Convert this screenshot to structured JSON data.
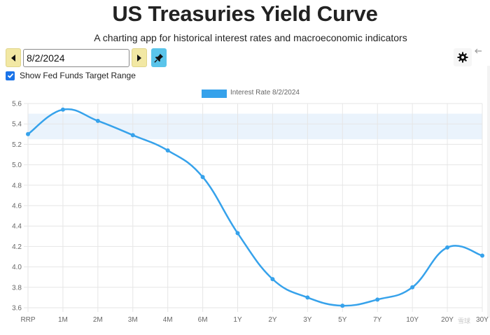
{
  "header": {
    "title": "US Treasuries Yield Curve",
    "subtitle": "A charting app for historical interest rates and macroeconomic indicators"
  },
  "controls": {
    "date_value": "8/2/2024",
    "fed_funds_checkbox_label": "Show Fed Funds Target Range",
    "fed_funds_checked": true
  },
  "icons": {
    "prev": "triangle-left-icon",
    "next": "triangle-right-icon",
    "pin": "pushpin-icon",
    "settings": "gear-icon",
    "collapse": "arrow-left-icon"
  },
  "colors": {
    "line": "#36a2eb",
    "nav_button": "#f2e8a4",
    "pin_button": "#5ac4ea",
    "checkbox": "#1a73e8",
    "fed_band": "#eaf3fc"
  },
  "watermark": "雪球",
  "chart_data": {
    "type": "line",
    "title": "",
    "legend": [
      "Interest Rate 8/2/2024"
    ],
    "legend_position": "top",
    "grid": true,
    "categories": [
      "RRP",
      "1M",
      "2M",
      "3M",
      "4M",
      "6M",
      "1Y",
      "2Y",
      "3Y",
      "5Y",
      "7Y",
      "10Y",
      "20Y",
      "30Y"
    ],
    "series": [
      {
        "name": "Interest Rate 8/2/2024",
        "values": [
          5.3,
          5.54,
          5.43,
          5.29,
          5.14,
          4.88,
          4.33,
          3.88,
          3.7,
          3.62,
          3.68,
          3.8,
          4.19,
          4.11
        ]
      }
    ],
    "fed_funds_target_range": [
      5.25,
      5.5
    ],
    "ylim": [
      3.6,
      5.6
    ],
    "yticks": [
      "5.6",
      "5.4",
      "5.2",
      "5.0",
      "4.8",
      "4.6",
      "4.4",
      "4.2",
      "4.0",
      "3.8",
      "3.6"
    ],
    "xlabel": "",
    "ylabel": ""
  }
}
